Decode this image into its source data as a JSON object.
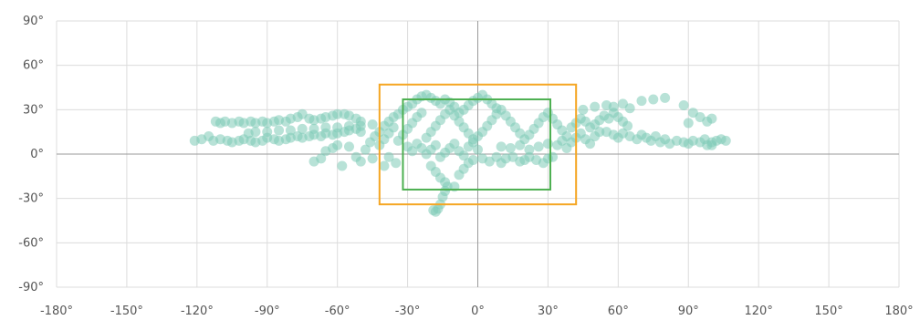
{
  "chart_data": {
    "type": "scatter",
    "title": "",
    "xlabel": "",
    "ylabel": "",
    "xlim": [
      -180,
      180
    ],
    "ylim": [
      -90,
      90
    ],
    "x_ticks": [
      "-180°",
      "-150°",
      "-120°",
      "-90°",
      "-60°",
      "-30°",
      "0°",
      "30°",
      "60°",
      "90°",
      "120°",
      "150°",
      "180°"
    ],
    "y_ticks": [
      "90°",
      "60°",
      "30°",
      "0°",
      "-30°",
      "-60°",
      "-90°"
    ],
    "grid": true,
    "colors": {
      "points": "#7ecbb7",
      "outer_box": "#f5a623",
      "inner_box": "#4caf50",
      "zero_line": "#9a9a9a",
      "grid": "#dcdcdc",
      "tick_text": "#555555"
    },
    "boxes": [
      {
        "color": "#f5a623",
        "lon": [
          -42,
          42
        ],
        "lat": [
          -34,
          47
        ]
      },
      {
        "color": "#4caf50",
        "lon": [
          -32,
          31
        ],
        "lat": [
          -24,
          37
        ]
      }
    ],
    "series": [
      {
        "points": [
          [
            -121,
            9
          ],
          [
            -118,
            10
          ],
          [
            -115,
            12
          ],
          [
            -112,
            22
          ],
          [
            -110,
            21
          ],
          [
            -108,
            22
          ],
          [
            -105,
            21
          ],
          [
            -102,
            22
          ],
          [
            -100,
            21
          ],
          [
            -97,
            22
          ],
          [
            -95,
            21
          ],
          [
            -92,
            22
          ],
          [
            -90,
            21
          ],
          [
            -87,
            22
          ],
          [
            -85,
            23
          ],
          [
            -82,
            22
          ],
          [
            -80,
            24
          ],
          [
            -77,
            25
          ],
          [
            -75,
            27
          ],
          [
            -72,
            24
          ],
          [
            -70,
            23
          ],
          [
            -67,
            24
          ],
          [
            -65,
            25
          ],
          [
            -62,
            26
          ],
          [
            -60,
            27
          ],
          [
            -57,
            27
          ],
          [
            -55,
            26
          ],
          [
            -52,
            24
          ],
          [
            -50,
            22
          ],
          [
            -113,
            9
          ],
          [
            -110,
            10
          ],
          [
            -107,
            9
          ],
          [
            -105,
            8
          ],
          [
            -102,
            9
          ],
          [
            -100,
            10
          ],
          [
            -97,
            9
          ],
          [
            -95,
            8
          ],
          [
            -92,
            9
          ],
          [
            -90,
            11
          ],
          [
            -87,
            10
          ],
          [
            -85,
            9
          ],
          [
            -82,
            10
          ],
          [
            -80,
            11
          ],
          [
            -77,
            12
          ],
          [
            -75,
            11
          ],
          [
            -72,
            12
          ],
          [
            -70,
            13
          ],
          [
            -67,
            12
          ],
          [
            -65,
            14
          ],
          [
            -62,
            13
          ],
          [
            -60,
            14
          ],
          [
            -57,
            15
          ],
          [
            -55,
            16
          ],
          [
            -52,
            17
          ],
          [
            -50,
            15
          ],
          [
            -98,
            14
          ],
          [
            -95,
            15
          ],
          [
            -90,
            15
          ],
          [
            -85,
            16
          ],
          [
            -80,
            16
          ],
          [
            -75,
            17
          ],
          [
            -70,
            17
          ],
          [
            -65,
            18
          ],
          [
            -60,
            18
          ],
          [
            -55,
            19
          ],
          [
            -50,
            19
          ],
          [
            -45,
            20
          ],
          [
            -70,
            -5
          ],
          [
            -67,
            -3
          ],
          [
            -65,
            2
          ],
          [
            -62,
            4
          ],
          [
            -60,
            6
          ],
          [
            -58,
            -8
          ],
          [
            -55,
            5
          ],
          [
            -52,
            -2
          ],
          [
            -50,
            -5
          ],
          [
            -48,
            3
          ],
          [
            -45,
            -3
          ],
          [
            -42,
            6
          ],
          [
            -40,
            -8
          ],
          [
            -38,
            -2
          ],
          [
            -35,
            -6
          ],
          [
            -46,
            8
          ],
          [
            -44,
            12
          ],
          [
            -42,
            15
          ],
          [
            -40,
            19
          ],
          [
            -38,
            22
          ],
          [
            -36,
            25
          ],
          [
            -34,
            27
          ],
          [
            -32,
            30
          ],
          [
            -30,
            32
          ],
          [
            -28,
            34
          ],
          [
            -26,
            37
          ],
          [
            -24,
            39
          ],
          [
            -22,
            40
          ],
          [
            -20,
            38
          ],
          [
            -18,
            36
          ],
          [
            -16,
            34
          ],
          [
            -14,
            37
          ],
          [
            -40,
            10
          ],
          [
            -38,
            14
          ],
          [
            -36,
            18
          ],
          [
            -34,
            9
          ],
          [
            -32,
            13
          ],
          [
            -30,
            17
          ],
          [
            -28,
            21
          ],
          [
            -26,
            25
          ],
          [
            -24,
            28
          ],
          [
            -22,
            11
          ],
          [
            -20,
            15
          ],
          [
            -18,
            19
          ],
          [
            -16,
            23
          ],
          [
            -14,
            27
          ],
          [
            -12,
            30
          ],
          [
            -10,
            26
          ],
          [
            -8,
            22
          ],
          [
            -6,
            18
          ],
          [
            -4,
            14
          ],
          [
            -2,
            10
          ],
          [
            -30,
            5
          ],
          [
            -28,
            2
          ],
          [
            -26,
            7
          ],
          [
            -24,
            4
          ],
          [
            -22,
            0
          ],
          [
            -20,
            3
          ],
          [
            -18,
            6
          ],
          [
            -16,
            -2
          ],
          [
            -14,
            1
          ],
          [
            -12,
            4
          ],
          [
            -10,
            7
          ],
          [
            -8,
            2
          ],
          [
            -6,
            -1
          ],
          [
            -4,
            5
          ],
          [
            -2,
            8
          ],
          [
            0,
            3
          ],
          [
            0,
            12
          ],
          [
            2,
            15
          ],
          [
            4,
            19
          ],
          [
            6,
            23
          ],
          [
            8,
            27
          ],
          [
            10,
            30
          ],
          [
            12,
            26
          ],
          [
            14,
            22
          ],
          [
            16,
            18
          ],
          [
            18,
            14
          ],
          [
            20,
            10
          ],
          [
            22,
            13
          ],
          [
            24,
            17
          ],
          [
            26,
            21
          ],
          [
            28,
            25
          ],
          [
            30,
            28
          ],
          [
            32,
            24
          ],
          [
            34,
            20
          ],
          [
            36,
            16
          ],
          [
            38,
            12
          ],
          [
            -6,
            30
          ],
          [
            -4,
            33
          ],
          [
            -2,
            36
          ],
          [
            0,
            38
          ],
          [
            2,
            40
          ],
          [
            4,
            37
          ],
          [
            6,
            34
          ],
          [
            8,
            31
          ],
          [
            -8,
            28
          ],
          [
            -10,
            32
          ],
          [
            -12,
            35
          ],
          [
            -20,
            -8
          ],
          [
            -18,
            -12
          ],
          [
            -16,
            -16
          ],
          [
            -14,
            -19
          ],
          [
            -13,
            -22
          ],
          [
            -14,
            -25
          ],
          [
            -15,
            -29
          ],
          [
            -16,
            -34
          ],
          [
            -17,
            -37
          ],
          [
            -18,
            -39
          ],
          [
            -19,
            -38
          ],
          [
            -10,
            -22
          ],
          [
            -8,
            -14
          ],
          [
            -6,
            -10
          ],
          [
            -4,
            -6
          ],
          [
            -2,
            -4
          ],
          [
            2,
            -3
          ],
          [
            5,
            -5
          ],
          [
            8,
            -2
          ],
          [
            10,
            -6
          ],
          [
            12,
            -3
          ],
          [
            15,
            -2
          ],
          [
            18,
            -5
          ],
          [
            20,
            -4
          ],
          [
            22,
            -2
          ],
          [
            25,
            -4
          ],
          [
            28,
            -6
          ],
          [
            30,
            -3
          ],
          [
            32,
            -2
          ],
          [
            10,
            5
          ],
          [
            14,
            4
          ],
          [
            18,
            6
          ],
          [
            22,
            3
          ],
          [
            26,
            5
          ],
          [
            30,
            7
          ],
          [
            34,
            6
          ],
          [
            36,
            9
          ],
          [
            38,
            4
          ],
          [
            40,
            8
          ],
          [
            42,
            11
          ],
          [
            44,
            14
          ],
          [
            46,
            10
          ],
          [
            48,
            7
          ],
          [
            50,
            12
          ],
          [
            52,
            15
          ],
          [
            40,
            18
          ],
          [
            42,
            21
          ],
          [
            44,
            24
          ],
          [
            46,
            22
          ],
          [
            48,
            18
          ],
          [
            50,
            20
          ],
          [
            52,
            23
          ],
          [
            54,
            26
          ],
          [
            56,
            24
          ],
          [
            58,
            28
          ],
          [
            60,
            25
          ],
          [
            62,
            22
          ],
          [
            64,
            19
          ],
          [
            45,
            30
          ],
          [
            50,
            32
          ],
          [
            55,
            33
          ],
          [
            58,
            32
          ],
          [
            62,
            34
          ],
          [
            65,
            31
          ],
          [
            70,
            36
          ],
          [
            75,
            37
          ],
          [
            80,
            38
          ],
          [
            88,
            33
          ],
          [
            92,
            28
          ],
          [
            95,
            25
          ],
          [
            98,
            22
          ],
          [
            100,
            24
          ],
          [
            90,
            21
          ],
          [
            55,
            15
          ],
          [
            58,
            13
          ],
          [
            60,
            11
          ],
          [
            62,
            14
          ],
          [
            65,
            12
          ],
          [
            68,
            10
          ],
          [
            70,
            13
          ],
          [
            72,
            11
          ],
          [
            74,
            9
          ],
          [
            76,
            12
          ],
          [
            78,
            8
          ],
          [
            80,
            10
          ],
          [
            82,
            7
          ],
          [
            85,
            9
          ],
          [
            88,
            8
          ],
          [
            90,
            7
          ],
          [
            92,
            9
          ],
          [
            95,
            8
          ],
          [
            97,
            10
          ],
          [
            100,
            8
          ],
          [
            102,
            9
          ],
          [
            104,
            10
          ],
          [
            106,
            9
          ],
          [
            98,
            6
          ],
          [
            100,
            6
          ]
        ]
      }
    ]
  }
}
